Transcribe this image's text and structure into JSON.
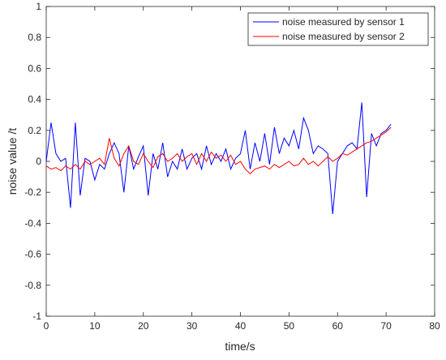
{
  "chart_data": {
    "type": "line",
    "xlabel": "time/s",
    "ylabel": "noise value /t",
    "x": [
      0,
      1,
      2,
      3,
      4,
      5,
      6,
      7,
      8,
      9,
      10,
      11,
      12,
      13,
      14,
      15,
      16,
      17,
      18,
      19,
      20,
      21,
      22,
      23,
      24,
      25,
      26,
      27,
      28,
      29,
      30,
      31,
      32,
      33,
      34,
      35,
      36,
      37,
      38,
      39,
      40,
      41,
      42,
      43,
      44,
      45,
      46,
      47,
      48,
      49,
      50,
      51,
      52,
      53,
      54,
      55,
      56,
      57,
      58,
      59,
      60,
      61,
      62,
      63,
      64,
      65,
      66,
      67,
      68,
      69,
      70,
      71
    ],
    "series": [
      {
        "name": "noise measured by sensor 1",
        "color": "#0000ff",
        "values": [
          0.0,
          0.25,
          0.05,
          0.0,
          0.02,
          -0.3,
          0.25,
          -0.22,
          0.02,
          0.0,
          -0.12,
          -0.02,
          -0.05,
          0.05,
          0.12,
          0.05,
          -0.2,
          0.1,
          -0.05,
          0.03,
          0.1,
          -0.22,
          0.05,
          -0.05,
          0.12,
          -0.1,
          0.0,
          -0.05,
          0.08,
          -0.05,
          0.02,
          0.05,
          -0.05,
          0.1,
          -0.02,
          0.05,
          0.0,
          0.08,
          -0.05,
          0.02,
          0.05,
          0.2,
          -0.05,
          0.12,
          0.0,
          0.18,
          -0.02,
          0.22,
          0.05,
          0.15,
          0.1,
          0.2,
          0.08,
          0.28,
          0.2,
          0.05,
          0.1,
          0.08,
          0.05,
          -0.34,
          0.0,
          0.05,
          0.1,
          0.12,
          0.08,
          0.38,
          -0.23,
          0.18,
          0.1,
          0.18,
          0.2,
          0.24
        ]
      },
      {
        "name": "noise measured by sensor 2",
        "color": "#ff0000",
        "values": [
          -0.03,
          -0.05,
          -0.04,
          -0.06,
          -0.03,
          -0.05,
          -0.02,
          -0.05,
          0.0,
          -0.02,
          0.0,
          0.02,
          -0.02,
          0.15,
          0.02,
          -0.03,
          0.05,
          0.1,
          0.0,
          -0.02,
          0.05,
          0.0,
          -0.04,
          0.03,
          0.05,
          0.0,
          0.02,
          0.05,
          0.0,
          0.03,
          0.05,
          -0.02,
          0.05,
          0.0,
          0.06,
          0.02,
          0.04,
          0.0,
          0.04,
          -0.02,
          0.0,
          -0.05,
          -0.08,
          -0.05,
          -0.04,
          -0.03,
          -0.05,
          -0.02,
          -0.04,
          -0.02,
          0.0,
          -0.03,
          -0.02,
          0.02,
          -0.02,
          0.0,
          -0.03,
          0.0,
          0.03,
          0.0,
          0.02,
          0.05,
          0.04,
          0.06,
          0.08,
          0.1,
          0.12,
          0.13,
          0.15,
          0.17,
          0.19,
          0.22
        ]
      }
    ],
    "xlim": [
      0,
      80
    ],
    "xticks": [
      0,
      10,
      20,
      30,
      40,
      50,
      60,
      70,
      80
    ],
    "ylim": [
      -1,
      1
    ],
    "yticks": [
      -1,
      -0.8,
      -0.6,
      -0.4,
      -0.2,
      0,
      0.2,
      0.4,
      0.6,
      0.8,
      1
    ],
    "grid": false,
    "legend": "top-right"
  }
}
